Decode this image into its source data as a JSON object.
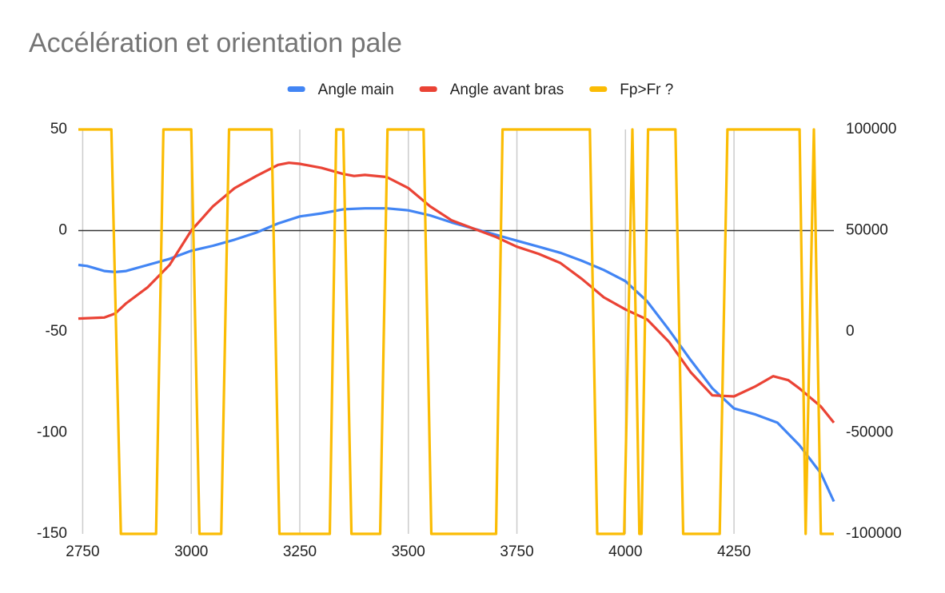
{
  "chart_data": {
    "type": "line",
    "title": "Accélération et orientation pale",
    "xlim": [
      2740,
      4480
    ],
    "xticks": [
      2750,
      3000,
      3250,
      3500,
      3750,
      4000,
      4250
    ],
    "ylim": [
      -150,
      50
    ],
    "yticks": [
      -150,
      -100,
      -50,
      0,
      50
    ],
    "y2lim": [
      -100000,
      100000
    ],
    "y2ticks": [
      -100000,
      -50000,
      0,
      50000,
      100000
    ],
    "grid": true,
    "legend": "top",
    "series": [
      {
        "name": "Angle main",
        "color": "#4285f4",
        "x": [
          2740,
          2760,
          2800,
          2825,
          2850,
          2900,
          2950,
          3000,
          3050,
          3100,
          3150,
          3200,
          3250,
          3300,
          3350,
          3400,
          3450,
          3500,
          3550,
          3600,
          3650,
          3700,
          3750,
          3800,
          3850,
          3900,
          3950,
          4000,
          4050,
          4100,
          4150,
          4200,
          4250,
          4300,
          4350,
          4400,
          4450,
          4480
        ],
        "values": [
          -17,
          -17.5,
          -20,
          -20.5,
          -20,
          -17,
          -14,
          -10,
          -7.5,
          -4.5,
          -1,
          3.5,
          7,
          8.5,
          10.5,
          11,
          11,
          10,
          7.5,
          4,
          1,
          -2,
          -5,
          -8,
          -11,
          -15,
          -19.5,
          -25,
          -35,
          -49,
          -64,
          -78,
          -88,
          -91,
          -95,
          -106,
          -120,
          -134
        ]
      },
      {
        "name": "Angle avant bras",
        "color": "#ea4335",
        "x": [
          2740,
          2800,
          2825,
          2850,
          2900,
          2950,
          3000,
          3050,
          3100,
          3150,
          3200,
          3225,
          3250,
          3300,
          3350,
          3375,
          3400,
          3450,
          3500,
          3550,
          3600,
          3650,
          3700,
          3750,
          3800,
          3850,
          3900,
          3950,
          4000,
          4050,
          4100,
          4150,
          4200,
          4250,
          4300,
          4340,
          4375,
          4400,
          4450,
          4480
        ],
        "values": [
          -43.5,
          -43,
          -41,
          -36,
          -28,
          -17,
          0,
          12,
          21,
          27,
          32.5,
          33.5,
          33,
          31,
          28,
          27,
          27.5,
          26.5,
          21,
          12,
          5,
          1,
          -3,
          -8,
          -11.5,
          -16,
          -24,
          -33,
          -39,
          -44,
          -55,
          -70,
          -81.5,
          -82,
          -77,
          -72,
          -74,
          -78,
          -87,
          -95
        ]
      },
      {
        "name": "Fp>Fr ?",
        "color": "#fbbc04",
        "axis": "y2",
        "x": [
          2740,
          2816,
          2838,
          2919,
          2936,
          3000,
          3019,
          3069,
          3087,
          3185,
          3203,
          3319,
          3334,
          3350,
          3369,
          3435,
          3452,
          3535,
          3553,
          3702,
          3717,
          3918,
          3935,
          3997,
          4016,
          4032,
          4037,
          4052,
          4115,
          4133,
          4217,
          4235,
          4401,
          4415,
          4434,
          4450,
          4480
        ],
        "values": [
          100000,
          100000,
          -100000,
          -100000,
          100000,
          100000,
          -100000,
          -100000,
          100000,
          100000,
          -100000,
          -100000,
          100000,
          100000,
          -100000,
          -100000,
          100000,
          100000,
          -100000,
          -100000,
          100000,
          100000,
          -100000,
          -100000,
          100000,
          -100000,
          -100000,
          100000,
          100000,
          -100000,
          -100000,
          100000,
          100000,
          -100000,
          100000,
          -100000,
          -100000
        ]
      }
    ]
  }
}
